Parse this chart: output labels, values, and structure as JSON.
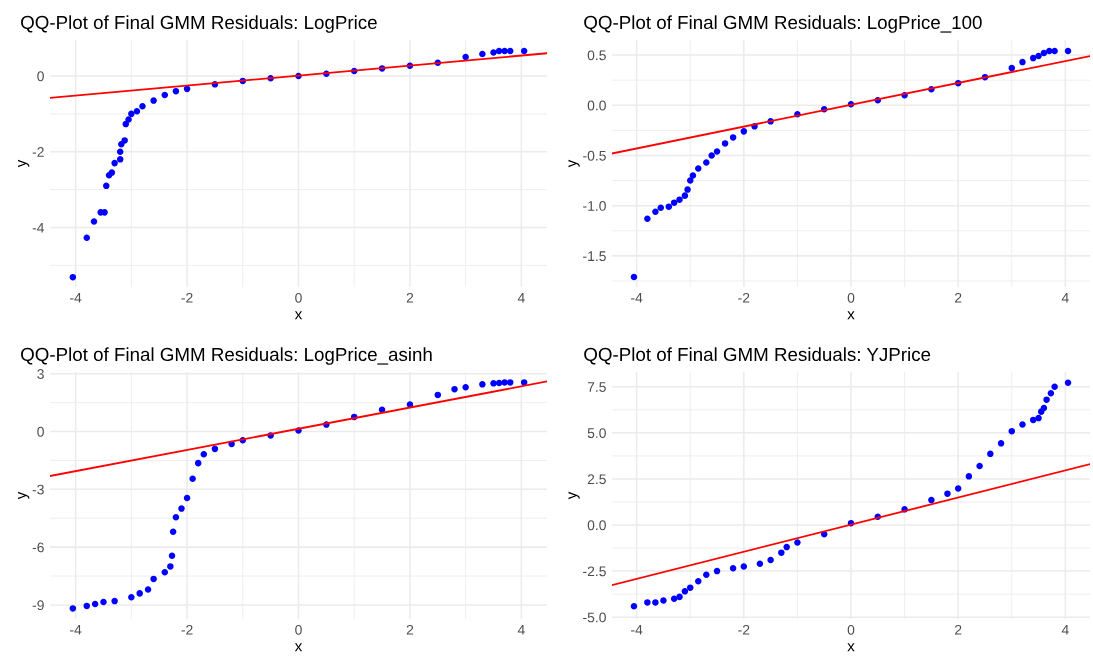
{
  "chart_data": [
    {
      "type": "scatter",
      "title": "QQ-Plot of Final GMM Residuals: LogPrice",
      "xlabel": "x",
      "ylabel": "y",
      "grid": true,
      "xlim": [
        -4.46,
        4.46
      ],
      "ylim": [
        -5.57,
        0.95
      ],
      "xticks": [
        -4,
        -2,
        0,
        2,
        4
      ],
      "yticks": [
        -4,
        -2,
        0
      ],
      "series": [
        {
          "marker": "circle",
          "color": "#0000ff",
          "x": [
            -4.05,
            -3.8,
            -3.67,
            -3.55,
            -3.48,
            -3.45,
            -3.4,
            -3.35,
            -3.3,
            -3.2,
            -3.2,
            -3.18,
            -3.12,
            -3.1,
            -3.05,
            -3.0,
            -2.9,
            -2.8,
            -2.6,
            -2.4,
            -2.2,
            -2.0,
            -1.5,
            -1.0,
            -0.5,
            0,
            0.5,
            1.0,
            1.5,
            2.0,
            2.5,
            3.0,
            3.3,
            3.5,
            3.6,
            3.7,
            3.8,
            4.05
          ],
          "values": [
            -5.31,
            -4.27,
            -3.84,
            -3.6,
            -3.6,
            -2.9,
            -2.62,
            -2.55,
            -2.3,
            -2.2,
            -2.0,
            -1.8,
            -1.7,
            -1.27,
            -1.15,
            -1.0,
            -0.93,
            -0.8,
            -0.65,
            -0.5,
            -0.4,
            -0.34,
            -0.22,
            -0.13,
            -0.06,
            0.0,
            0.06,
            0.13,
            0.2,
            0.27,
            0.35,
            0.5,
            0.58,
            0.62,
            0.66,
            0.66,
            0.66,
            0.66
          ]
        },
        {
          "type": "line",
          "color": "#ff0000",
          "x": [
            -4.46,
            4.46
          ],
          "values": [
            -0.58,
            0.6
          ]
        }
      ]
    },
    {
      "type": "scatter",
      "title": "QQ-Plot of Final GMM Residuals: LogPrice_100",
      "xlabel": "x",
      "ylabel": "y",
      "grid": true,
      "xlim": [
        -4.46,
        4.46
      ],
      "ylim": [
        -1.81,
        0.65
      ],
      "xticks": [
        -4,
        -2,
        0,
        2,
        4
      ],
      "yticks": [
        {
          "value": -1.5,
          "label": "-1.5"
        },
        {
          "value": -1.0,
          "label": "-1.0"
        },
        {
          "value": -0.5,
          "label": "-0.5"
        },
        {
          "value": 0.0,
          "label": "0.0"
        },
        {
          "value": 0.5,
          "label": "0.5"
        }
      ],
      "series": [
        {
          "marker": "circle",
          "color": "#0000ff",
          "x": [
            -4.05,
            -3.8,
            -3.65,
            -3.55,
            -3.4,
            -3.3,
            -3.2,
            -3.1,
            -3.05,
            -3.0,
            -2.95,
            -2.85,
            -2.7,
            -2.6,
            -2.5,
            -2.35,
            -2.2,
            -2.0,
            -1.8,
            -1.5,
            -1.0,
            -0.5,
            0,
            0.5,
            1.0,
            1.5,
            2.0,
            2.5,
            3.0,
            3.2,
            3.4,
            3.5,
            3.6,
            3.7,
            3.8,
            4.05
          ],
          "values": [
            -1.71,
            -1.13,
            -1.06,
            -1.02,
            -1.01,
            -0.97,
            -0.94,
            -0.9,
            -0.84,
            -0.75,
            -0.7,
            -0.63,
            -0.57,
            -0.5,
            -0.46,
            -0.38,
            -0.32,
            -0.26,
            -0.21,
            -0.16,
            -0.09,
            -0.04,
            0.01,
            0.05,
            0.1,
            0.16,
            0.22,
            0.28,
            0.37,
            0.43,
            0.47,
            0.49,
            0.52,
            0.54,
            0.54,
            0.54
          ]
        },
        {
          "type": "line",
          "color": "#ff0000",
          "x": [
            -4.46,
            4.46
          ],
          "values": [
            -0.48,
            0.49
          ]
        }
      ]
    },
    {
      "type": "scatter",
      "title": "QQ-Plot of Final GMM Residuals: LogPrice_asinh",
      "xlabel": "x",
      "ylabel": "y",
      "grid": true,
      "xlim": [
        -4.46,
        4.46
      ],
      "ylim": [
        -9.73,
        3.09
      ],
      "xticks": [
        -4,
        -2,
        0,
        2,
        4
      ],
      "yticks": [
        -9,
        -6,
        -3,
        0,
        3
      ],
      "series": [
        {
          "marker": "circle",
          "color": "#0000ff",
          "x": [
            -4.05,
            -3.8,
            -3.65,
            -3.5,
            -3.3,
            -3.0,
            -2.85,
            -2.7,
            -2.6,
            -2.4,
            -2.3,
            -2.27,
            -2.25,
            -2.2,
            -2.1,
            -2.0,
            -1.9,
            -1.8,
            -1.7,
            -1.5,
            -1.2,
            -1.0,
            -0.5,
            0,
            0.5,
            1.0,
            1.5,
            2.0,
            2.5,
            2.8,
            3.0,
            3.3,
            3.5,
            3.6,
            3.7,
            3.8,
            4.05
          ],
          "values": [
            -9.18,
            -9.05,
            -8.95,
            -8.85,
            -8.8,
            -8.6,
            -8.4,
            -8.2,
            -7.65,
            -7.3,
            -7.0,
            -6.45,
            -5.2,
            -4.45,
            -4.0,
            -3.45,
            -2.45,
            -1.64,
            -1.18,
            -0.9,
            -0.65,
            -0.45,
            -0.2,
            0.05,
            0.36,
            0.76,
            1.13,
            1.4,
            1.9,
            2.2,
            2.3,
            2.45,
            2.5,
            2.52,
            2.55,
            2.55,
            2.55
          ]
        },
        {
          "type": "line",
          "color": "#ff0000",
          "x": [
            -4.46,
            4.46
          ],
          "values": [
            -2.31,
            2.6
          ]
        }
      ]
    },
    {
      "type": "scatter",
      "title": "QQ-Plot of Final GMM Residuals: YJPrice",
      "xlabel": "x",
      "ylabel": "y",
      "grid": true,
      "xlim": [
        -4.46,
        4.46
      ],
      "ylim": [
        -5.1,
        8.3
      ],
      "xticks": [
        -4,
        -2,
        0,
        2,
        4
      ],
      "yticks": [
        {
          "value": -5.0,
          "label": "-5.0"
        },
        {
          "value": -2.5,
          "label": "-2.5"
        },
        {
          "value": 0.0,
          "label": "0.0"
        },
        {
          "value": 2.5,
          "label": "2.5"
        },
        {
          "value": 5.0,
          "label": "5.0"
        },
        {
          "value": 7.5,
          "label": "7.5"
        }
      ],
      "series": [
        {
          "marker": "circle",
          "color": "#0000ff",
          "x": [
            -4.05,
            -3.8,
            -3.65,
            -3.5,
            -3.3,
            -3.2,
            -3.1,
            -3.0,
            -2.85,
            -2.7,
            -2.5,
            -2.2,
            -2.0,
            -1.7,
            -1.5,
            -1.3,
            -1.2,
            -1.0,
            -0.5,
            0,
            0.5,
            1.0,
            1.5,
            1.8,
            2.0,
            2.2,
            2.4,
            2.6,
            2.8,
            3.0,
            3.2,
            3.4,
            3.5,
            3.55,
            3.6,
            3.65,
            3.73,
            3.8,
            4.05
          ],
          "values": [
            -4.41,
            -4.2,
            -4.2,
            -4.1,
            -4.0,
            -3.9,
            -3.6,
            -3.4,
            -3.05,
            -2.7,
            -2.5,
            -2.35,
            -2.25,
            -2.1,
            -1.9,
            -1.5,
            -1.2,
            -0.95,
            -0.5,
            0.1,
            0.45,
            0.85,
            1.35,
            1.7,
            1.98,
            2.64,
            3.2,
            3.86,
            4.43,
            5.09,
            5.45,
            5.7,
            5.8,
            6.15,
            6.35,
            6.8,
            7.15,
            7.5,
            7.72
          ]
        },
        {
          "type": "line",
          "color": "#ff0000",
          "x": [
            -4.46,
            4.46
          ],
          "values": [
            -3.26,
            3.3
          ]
        }
      ]
    }
  ]
}
